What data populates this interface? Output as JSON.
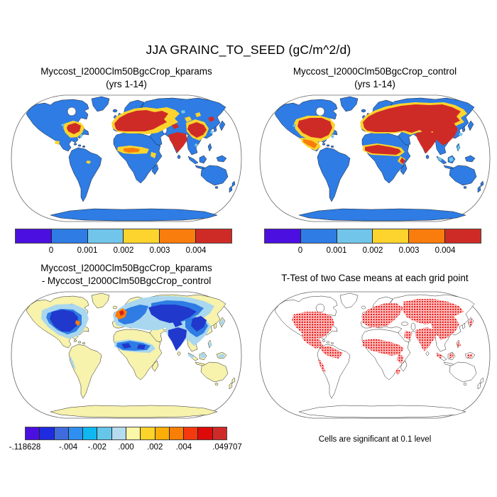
{
  "title": "JJA GRAINC_TO_SEED (gC/m^2/d)",
  "panels": {
    "top_left": {
      "title_line1": "Myccost_I2000Clm50BgcCrop_kparams",
      "title_line2": "(yrs 1-14)"
    },
    "top_right": {
      "title_line1": "Myccost_I2000Clm50BgcCrop_control",
      "title_line2": "(yrs 1-14)"
    },
    "bottom_left": {
      "title_line1": "Myccost_I2000Clm50BgcCrop_kparams",
      "title_line2": "- Myccost_I2000Clm50BgcCrop_control"
    },
    "bottom_right": {
      "title": "T-Test of two Case means at each grid point",
      "caption": "Cells are significant at 0.1 level"
    }
  },
  "colorbars": {
    "top": {
      "colors": [
        "#4B0FE0",
        "#2E7CE4",
        "#72C5EA",
        "#FCD42D",
        "#F97D0C",
        "#CF2B26"
      ],
      "ticks": [
        {
          "label": "0",
          "pos": 16.67
        },
        {
          "label": "0.001",
          "pos": 33.33
        },
        {
          "label": "0.002",
          "pos": 50
        },
        {
          "label": "0.003",
          "pos": 66.67
        },
        {
          "label": "0.004",
          "pos": 83.33
        }
      ]
    },
    "diff": {
      "colors": [
        "#4B0FE0",
        "#1F2BE0",
        "#3F6BDC",
        "#2E8FF0",
        "#0FB8F0",
        "#66C6EA",
        "#B4DCEE",
        "#FAF8A8",
        "#FBD32A",
        "#FBAE08",
        "#F97F04",
        "#F5390E",
        "#DE0A0A",
        "#CE2B28"
      ],
      "ticks": [
        {
          "label": "-.118628",
          "pos": 0
        },
        {
          "label": "-.004",
          "pos": 21.43
        },
        {
          "label": "-.002",
          "pos": 35.71
        },
        {
          "label": ".000",
          "pos": 50
        },
        {
          "label": ".002",
          "pos": 64.29
        },
        {
          "label": ".004",
          "pos": 78.57
        },
        {
          "label": ".049707",
          "pos": 100
        }
      ]
    }
  },
  "colors": {
    "land_blue": "#2E7CE4",
    "land_pale_yellow": "#F7F2AC",
    "land_white": "#ffffff",
    "ocean": "#ffffff",
    "coast": "#111111",
    "frame": "#666666",
    "hot_red": "#CF2B26",
    "hot_orange": "#F97D0C",
    "hot_gold": "#FCD42D",
    "hot_lightblue": "#72C5EA",
    "diff_dark_blue": "#2038CC",
    "diff_mid_blue": "#2E7CE4",
    "diff_pale_blue": "#A9D7EF",
    "diff_orange": "#F97D0C",
    "diff_red": "#D42020",
    "ttest_red": "#EE1311"
  },
  "chart_data": [
    {
      "type": "heatmap",
      "subtype": "global map, Robinson projection",
      "title": "Myccost_I2000Clm50BgcCrop_kparams (yrs 1-14)",
      "variable": "JJA GRAINC_TO_SEED",
      "units": "gC/m^2/d",
      "legend_position": "bottom",
      "colorbar_levels": [
        0,
        0.001,
        0.002,
        0.003,
        0.004
      ],
      "colorbar_colors": [
        "#4B0FE0",
        "#2E7CE4",
        "#72C5EA",
        "#FCD42D",
        "#F97D0C",
        "#CF2B26"
      ],
      "summary": "Land mostly 0-0.001 (blue); values >0.004 (red) over Europe, eastern US, India, eastern China; moderate yellow/orange over Sahel, Mexico, Central Asia; ocean blank"
    },
    {
      "type": "heatmap",
      "subtype": "global map, Robinson projection",
      "title": "Myccost_I2000Clm50BgcCrop_control (yrs 1-14)",
      "variable": "JJA GRAINC_TO_SEED",
      "units": "gC/m^2/d",
      "legend_position": "bottom",
      "colorbar_levels": [
        0,
        0.001,
        0.002,
        0.003,
        0.004
      ],
      "colorbar_colors": [
        "#4B0FE0",
        "#2E7CE4",
        "#72C5EA",
        "#FCD42D",
        "#F97D0C",
        "#CF2B26"
      ],
      "summary": "High values (red) far more extensive than kparams: most of the US, Mexico, Europe through Central Asia and Siberia, Sahel band, India, China"
    },
    {
      "type": "heatmap",
      "subtype": "global difference map, Robinson projection",
      "title": "Myccost_I2000Clm50BgcCrop_kparams - Myccost_I2000Clm50BgcCrop_control",
      "variable": "JJA GRAINC_TO_SEED difference",
      "units": "gC/m^2/d",
      "range": [
        -0.118628,
        0.049707
      ],
      "colorbar_tick_values": [
        -0.118628,
        -0.004,
        -0.002,
        0.0,
        0.002,
        0.004,
        0.049707
      ],
      "colorbar_colors": [
        "#4B0FE0",
        "#1F2BE0",
        "#3F6BDC",
        "#2E8FF0",
        "#0FB8F0",
        "#66C6EA",
        "#B4DCEE",
        "#FAF8A8",
        "#FBD32A",
        "#FBAE08",
        "#F97F04",
        "#F5390E",
        "#DE0A0A",
        "#CE2B28"
      ],
      "summary": "Mostly negative (blues) over central North America, Europe-Russia band, Sahel, India, eastern China; small positive spots (orange/red) over UK/France and US east coast; near zero (pale yellow) elsewhere"
    },
    {
      "type": "heatmap",
      "subtype": "significance mask, Robinson projection",
      "title": "T-Test of two Case means at each grid point",
      "caption": "Cells are significant at 0.1 level",
      "values": "binary mask (significant = red cell)",
      "summary": "Red scattered cells over US, Mexico, northern South America, Europe, Russia, Sahel and east Africa, Middle East, India, China, Southeast Asia"
    }
  ]
}
